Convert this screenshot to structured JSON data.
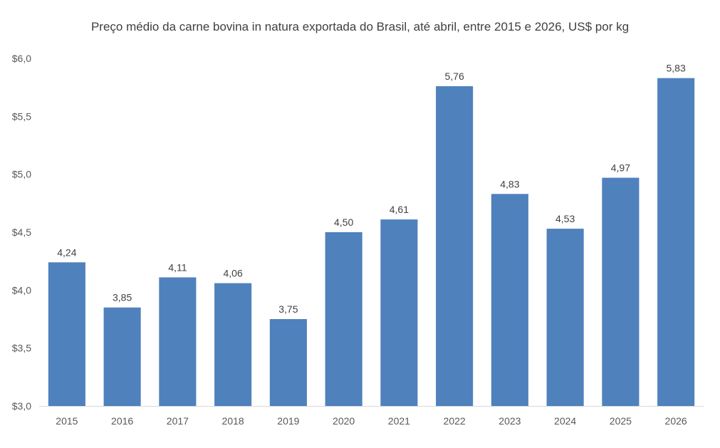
{
  "chart_data": {
    "type": "bar",
    "title": "Preço médio da carne bovina in natura exportada do Brasil, até abril, entre 2015 e 2026, US$ por kg",
    "xlabel": "",
    "ylabel": "",
    "categories": [
      "2015",
      "2016",
      "2017",
      "2018",
      "2019",
      "2020",
      "2021",
      "2022",
      "2023",
      "2024",
      "2025",
      "2026"
    ],
    "values": [
      4.24,
      3.85,
      4.11,
      4.06,
      3.75,
      4.5,
      4.61,
      5.76,
      4.83,
      4.53,
      4.97,
      5.83
    ],
    "data_labels": [
      "4,24",
      "3,85",
      "4,11",
      "4,06",
      "3,75",
      "4,50",
      "4,61",
      "5,76",
      "4,83",
      "4,53",
      "4,97",
      "5,83"
    ],
    "ylim": [
      3.0,
      6.0
    ],
    "yticks": [
      3.0,
      3.5,
      4.0,
      4.5,
      5.0,
      5.5,
      6.0
    ],
    "ytick_labels": [
      "$3,0",
      "$3,5",
      "$4,0",
      "$4,5",
      "$5,0",
      "$5,5",
      "$6,0"
    ],
    "grid": false,
    "legend": "none",
    "bar_color": "#4f81bd",
    "axis_color": "#d9d9d9"
  }
}
